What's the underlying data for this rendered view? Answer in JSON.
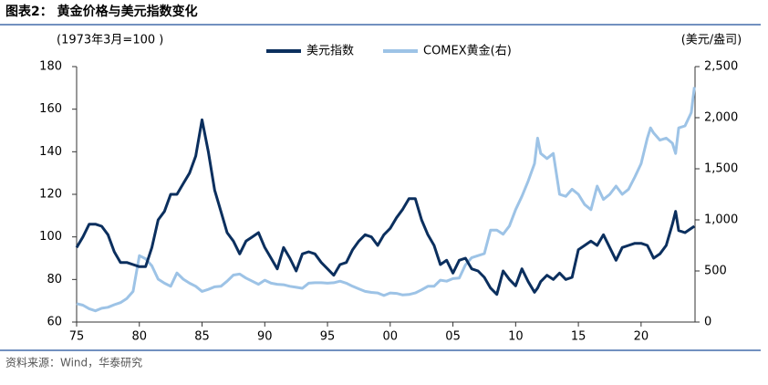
{
  "chart_data": {
    "type": "line",
    "title": "图表2：  黄金价格与美元指数变化",
    "y_label": "(1973年3月=100 )",
    "y2_label": "(美元/盎司)",
    "source": "资料来源：Wind，华泰研究",
    "x": [
      1975,
      1975.5,
      1976,
      1976.5,
      1977,
      1977.5,
      1978,
      1978.5,
      1979,
      1979.5,
      1980,
      1980.5,
      1981,
      1981.5,
      1982,
      1982.5,
      1983,
      1983.5,
      1984,
      1984.5,
      1985,
      1985.5,
      1986,
      1986.5,
      1987,
      1987.5,
      1988,
      1988.5,
      1989,
      1989.5,
      1990,
      1990.5,
      1991,
      1991.5,
      1992,
      1992.5,
      1993,
      1993.5,
      1994,
      1994.5,
      1995,
      1995.5,
      1996,
      1996.5,
      1997,
      1997.5,
      1998,
      1998.5,
      1999,
      1999.5,
      2000,
      2000.5,
      2001,
      2001.5,
      2002,
      2002.5,
      2003,
      2003.5,
      2004,
      2004.5,
      2005,
      2005.5,
      2006,
      2006.5,
      2007,
      2007.5,
      2008,
      2008.5,
      2009,
      2009.5,
      2010,
      2010.5,
      2011,
      2011.5,
      2011.75,
      2012,
      2012.5,
      2013,
      2013.5,
      2014,
      2014.5,
      2015,
      2015.5,
      2016,
      2016.5,
      2017,
      2017.5,
      2018,
      2018.5,
      2019,
      2019.5,
      2020,
      2020.5,
      2020.75,
      2021,
      2021.5,
      2022,
      2022.5,
      2022.75,
      2023,
      2023.5,
      2024,
      2024.25
    ],
    "series": [
      {
        "name": "美元指数",
        "color": "#0b2f5e",
        "axis": "y",
        "values": [
          95,
          100,
          106,
          106,
          105,
          101,
          93,
          88,
          88,
          87,
          86,
          86,
          95,
          108,
          112,
          120,
          120,
          125,
          130,
          138,
          155,
          140,
          122,
          112,
          102,
          98,
          92,
          98,
          100,
          102,
          95,
          90,
          85,
          95,
          90,
          84,
          92,
          93,
          92,
          88,
          85,
          82,
          87,
          88,
          94,
          98,
          101,
          100,
          96,
          101,
          104,
          109,
          113,
          118,
          118,
          108,
          101,
          96,
          87,
          89,
          83,
          89,
          90,
          85,
          84,
          81,
          76,
          73,
          84,
          80,
          77,
          85,
          79,
          74,
          76,
          79,
          82,
          80,
          83,
          80,
          81,
          94,
          96,
          98,
          96,
          101,
          95,
          89,
          95,
          96,
          97,
          97,
          96,
          93,
          90,
          92,
          96,
          106,
          112,
          103,
          102,
          104,
          105
        ]
      },
      {
        "name": "COMEX黄金(右)",
        "color": "#9dc3e6",
        "axis": "y2",
        "values": [
          180,
          165,
          130,
          110,
          135,
          145,
          170,
          190,
          230,
          300,
          650,
          620,
          550,
          420,
          380,
          350,
          480,
          420,
          380,
          350,
          300,
          320,
          345,
          350,
          400,
          460,
          470,
          430,
          400,
          370,
          410,
          380,
          370,
          365,
          350,
          340,
          330,
          380,
          385,
          385,
          380,
          385,
          400,
          380,
          350,
          325,
          300,
          290,
          285,
          260,
          285,
          280,
          265,
          270,
          285,
          315,
          350,
          350,
          410,
          400,
          425,
          430,
          560,
          630,
          650,
          670,
          900,
          900,
          860,
          940,
          1100,
          1230,
          1380,
          1550,
          1800,
          1650,
          1600,
          1650,
          1250,
          1230,
          1300,
          1250,
          1150,
          1100,
          1330,
          1200,
          1250,
          1330,
          1250,
          1300,
          1420,
          1550,
          1800,
          1900,
          1850,
          1780,
          1800,
          1750,
          1650,
          1900,
          1920,
          2050,
          2300
        ]
      }
    ],
    "xlim": [
      1975,
      2024.3
    ],
    "xticks": [
      {
        "value": 1975,
        "label": "75"
      },
      {
        "value": 1980,
        "label": "80"
      },
      {
        "value": 1985,
        "label": "85"
      },
      {
        "value": 1990,
        "label": "90"
      },
      {
        "value": 1995,
        "label": "95"
      },
      {
        "value": 2000,
        "label": "00"
      },
      {
        "value": 2005,
        "label": "05"
      },
      {
        "value": 2010,
        "label": "10"
      },
      {
        "value": 2015,
        "label": "15"
      },
      {
        "value": 2020,
        "label": "20"
      }
    ],
    "ylim": [
      60,
      180
    ],
    "yticks": [
      60,
      80,
      100,
      120,
      140,
      160,
      180
    ],
    "y2lim": [
      0,
      2500
    ],
    "y2ticks": [
      0,
      500,
      {
        "value": 1000,
        "label": "1,000"
      },
      {
        "value": 1500,
        "label": "1,500"
      },
      {
        "value": 2000,
        "label": "2,000"
      },
      {
        "value": 2500,
        "label": "2,500"
      }
    ],
    "grid": false
  }
}
